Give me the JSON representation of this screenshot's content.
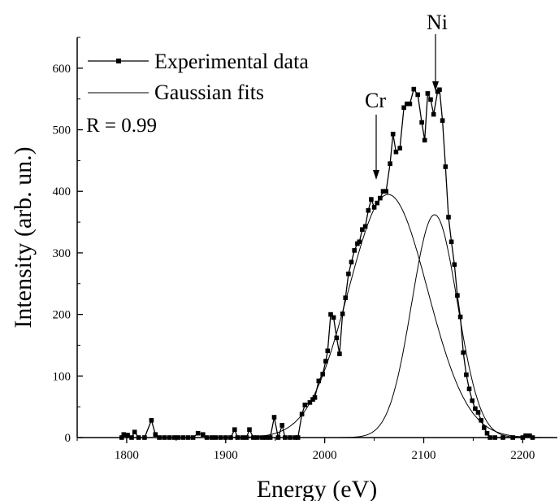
{
  "chart_data": {
    "type": "line",
    "xlabel": "Energy (eV)",
    "ylabel": "Intensity (arb. un.)",
    "xlim": [
      1750,
      2235
    ],
    "ylim": [
      0,
      650
    ],
    "x_ticks": [
      1800,
      1900,
      2000,
      2100,
      2200
    ],
    "y_ticks": [
      0,
      100,
      200,
      300,
      400,
      500,
      600
    ],
    "legend_position": "top-left",
    "fit_quality": "R = 0.99",
    "annotations": [
      {
        "label": "Cr",
        "x": 2058,
        "y": 400
      },
      {
        "label": "Ni",
        "x": 2116,
        "y": 565
      }
    ],
    "series": [
      {
        "name": "Experimental data",
        "style": "line-with-square-markers",
        "color": "#000000",
        "points": [
          [
            1795,
            0
          ],
          [
            1797,
            5
          ],
          [
            1801,
            4
          ],
          [
            1805,
            0
          ],
          [
            1808,
            9
          ],
          [
            1812,
            0
          ],
          [
            1818,
            0
          ],
          [
            1825,
            28
          ],
          [
            1829,
            5
          ],
          [
            1833,
            0
          ],
          [
            1838,
            0
          ],
          [
            1843,
            0
          ],
          [
            1848,
            0
          ],
          [
            1852,
            0
          ],
          [
            1857,
            0
          ],
          [
            1862,
            0
          ],
          [
            1867,
            0
          ],
          [
            1872,
            7
          ],
          [
            1877,
            5
          ],
          [
            1881,
            0
          ],
          [
            1886,
            0
          ],
          [
            1890,
            0
          ],
          [
            1895,
            0
          ],
          [
            1900,
            0
          ],
          [
            1905,
            0
          ],
          [
            1909,
            13
          ],
          [
            1912,
            0
          ],
          [
            1917,
            0
          ],
          [
            1921,
            0
          ],
          [
            1924,
            13
          ],
          [
            1928,
            0
          ],
          [
            1932,
            0
          ],
          [
            1937,
            0
          ],
          [
            1941,
            0
          ],
          [
            1945,
            0
          ],
          [
            1949,
            33
          ],
          [
            1953,
            0
          ],
          [
            1957,
            20
          ],
          [
            1960,
            0
          ],
          [
            1965,
            0
          ],
          [
            1970,
            0
          ],
          [
            1973,
            0
          ],
          [
            1977,
            38
          ],
          [
            1980,
            53
          ],
          [
            1985,
            57
          ],
          [
            1988,
            62
          ],
          [
            1990,
            65
          ],
          [
            1994,
            92
          ],
          [
            1998,
            103
          ],
          [
            2001,
            124
          ],
          [
            2003,
            141
          ],
          [
            2006,
            200
          ],
          [
            2009,
            195
          ],
          [
            2012,
            162
          ],
          [
            2015,
            136
          ],
          [
            2018,
            201
          ],
          [
            2021,
            227
          ],
          [
            2024,
            266
          ],
          [
            2027,
            285
          ],
          [
            2030,
            304
          ],
          [
            2033,
            315
          ],
          [
            2035,
            318
          ],
          [
            2038,
            338
          ],
          [
            2041,
            343
          ],
          [
            2044,
            369
          ],
          [
            2047,
            387
          ],
          [
            2050,
            374
          ],
          [
            2053,
            381
          ],
          [
            2056,
            389
          ],
          [
            2059,
            400
          ],
          [
            2062,
            400
          ],
          [
            2066,
            445
          ],
          [
            2069,
            493
          ],
          [
            2072,
            464
          ],
          [
            2076,
            470
          ],
          [
            2080,
            536
          ],
          [
            2083,
            542
          ],
          [
            2086,
            542
          ],
          [
            2090,
            566
          ],
          [
            2094,
            557
          ],
          [
            2098,
            512
          ],
          [
            2101,
            483
          ],
          [
            2104,
            559
          ],
          [
            2107,
            549
          ],
          [
            2110,
            525
          ],
          [
            2114,
            562
          ],
          [
            2116,
            565
          ],
          [
            2119,
            515
          ],
          [
            2122,
            440
          ],
          [
            2125,
            358
          ],
          [
            2128,
            318
          ],
          [
            2131,
            281
          ],
          [
            2134,
            231
          ],
          [
            2137,
            196
          ],
          [
            2140,
            138
          ],
          [
            2143,
            102
          ],
          [
            2146,
            79
          ],
          [
            2149,
            60
          ],
          [
            2152,
            47
          ],
          [
            2155,
            41
          ],
          [
            2158,
            28
          ],
          [
            2161,
            16
          ],
          [
            2164,
            7
          ],
          [
            2167,
            0
          ],
          [
            2172,
            0
          ],
          [
            2180,
            0
          ],
          [
            2190,
            0
          ],
          [
            2200,
            0
          ],
          [
            2203,
            3
          ],
          [
            2207,
            3
          ],
          [
            2210,
            0
          ]
        ]
      },
      {
        "name": "Gaussian fits",
        "style": "line",
        "color": "#000000",
        "components": [
          {
            "label": "Cr",
            "center": 2064,
            "sigma": 40,
            "amplitude": 395
          },
          {
            "label": "Ni",
            "center": 2111,
            "sigma": 23,
            "amplitude": 362
          }
        ]
      }
    ]
  }
}
